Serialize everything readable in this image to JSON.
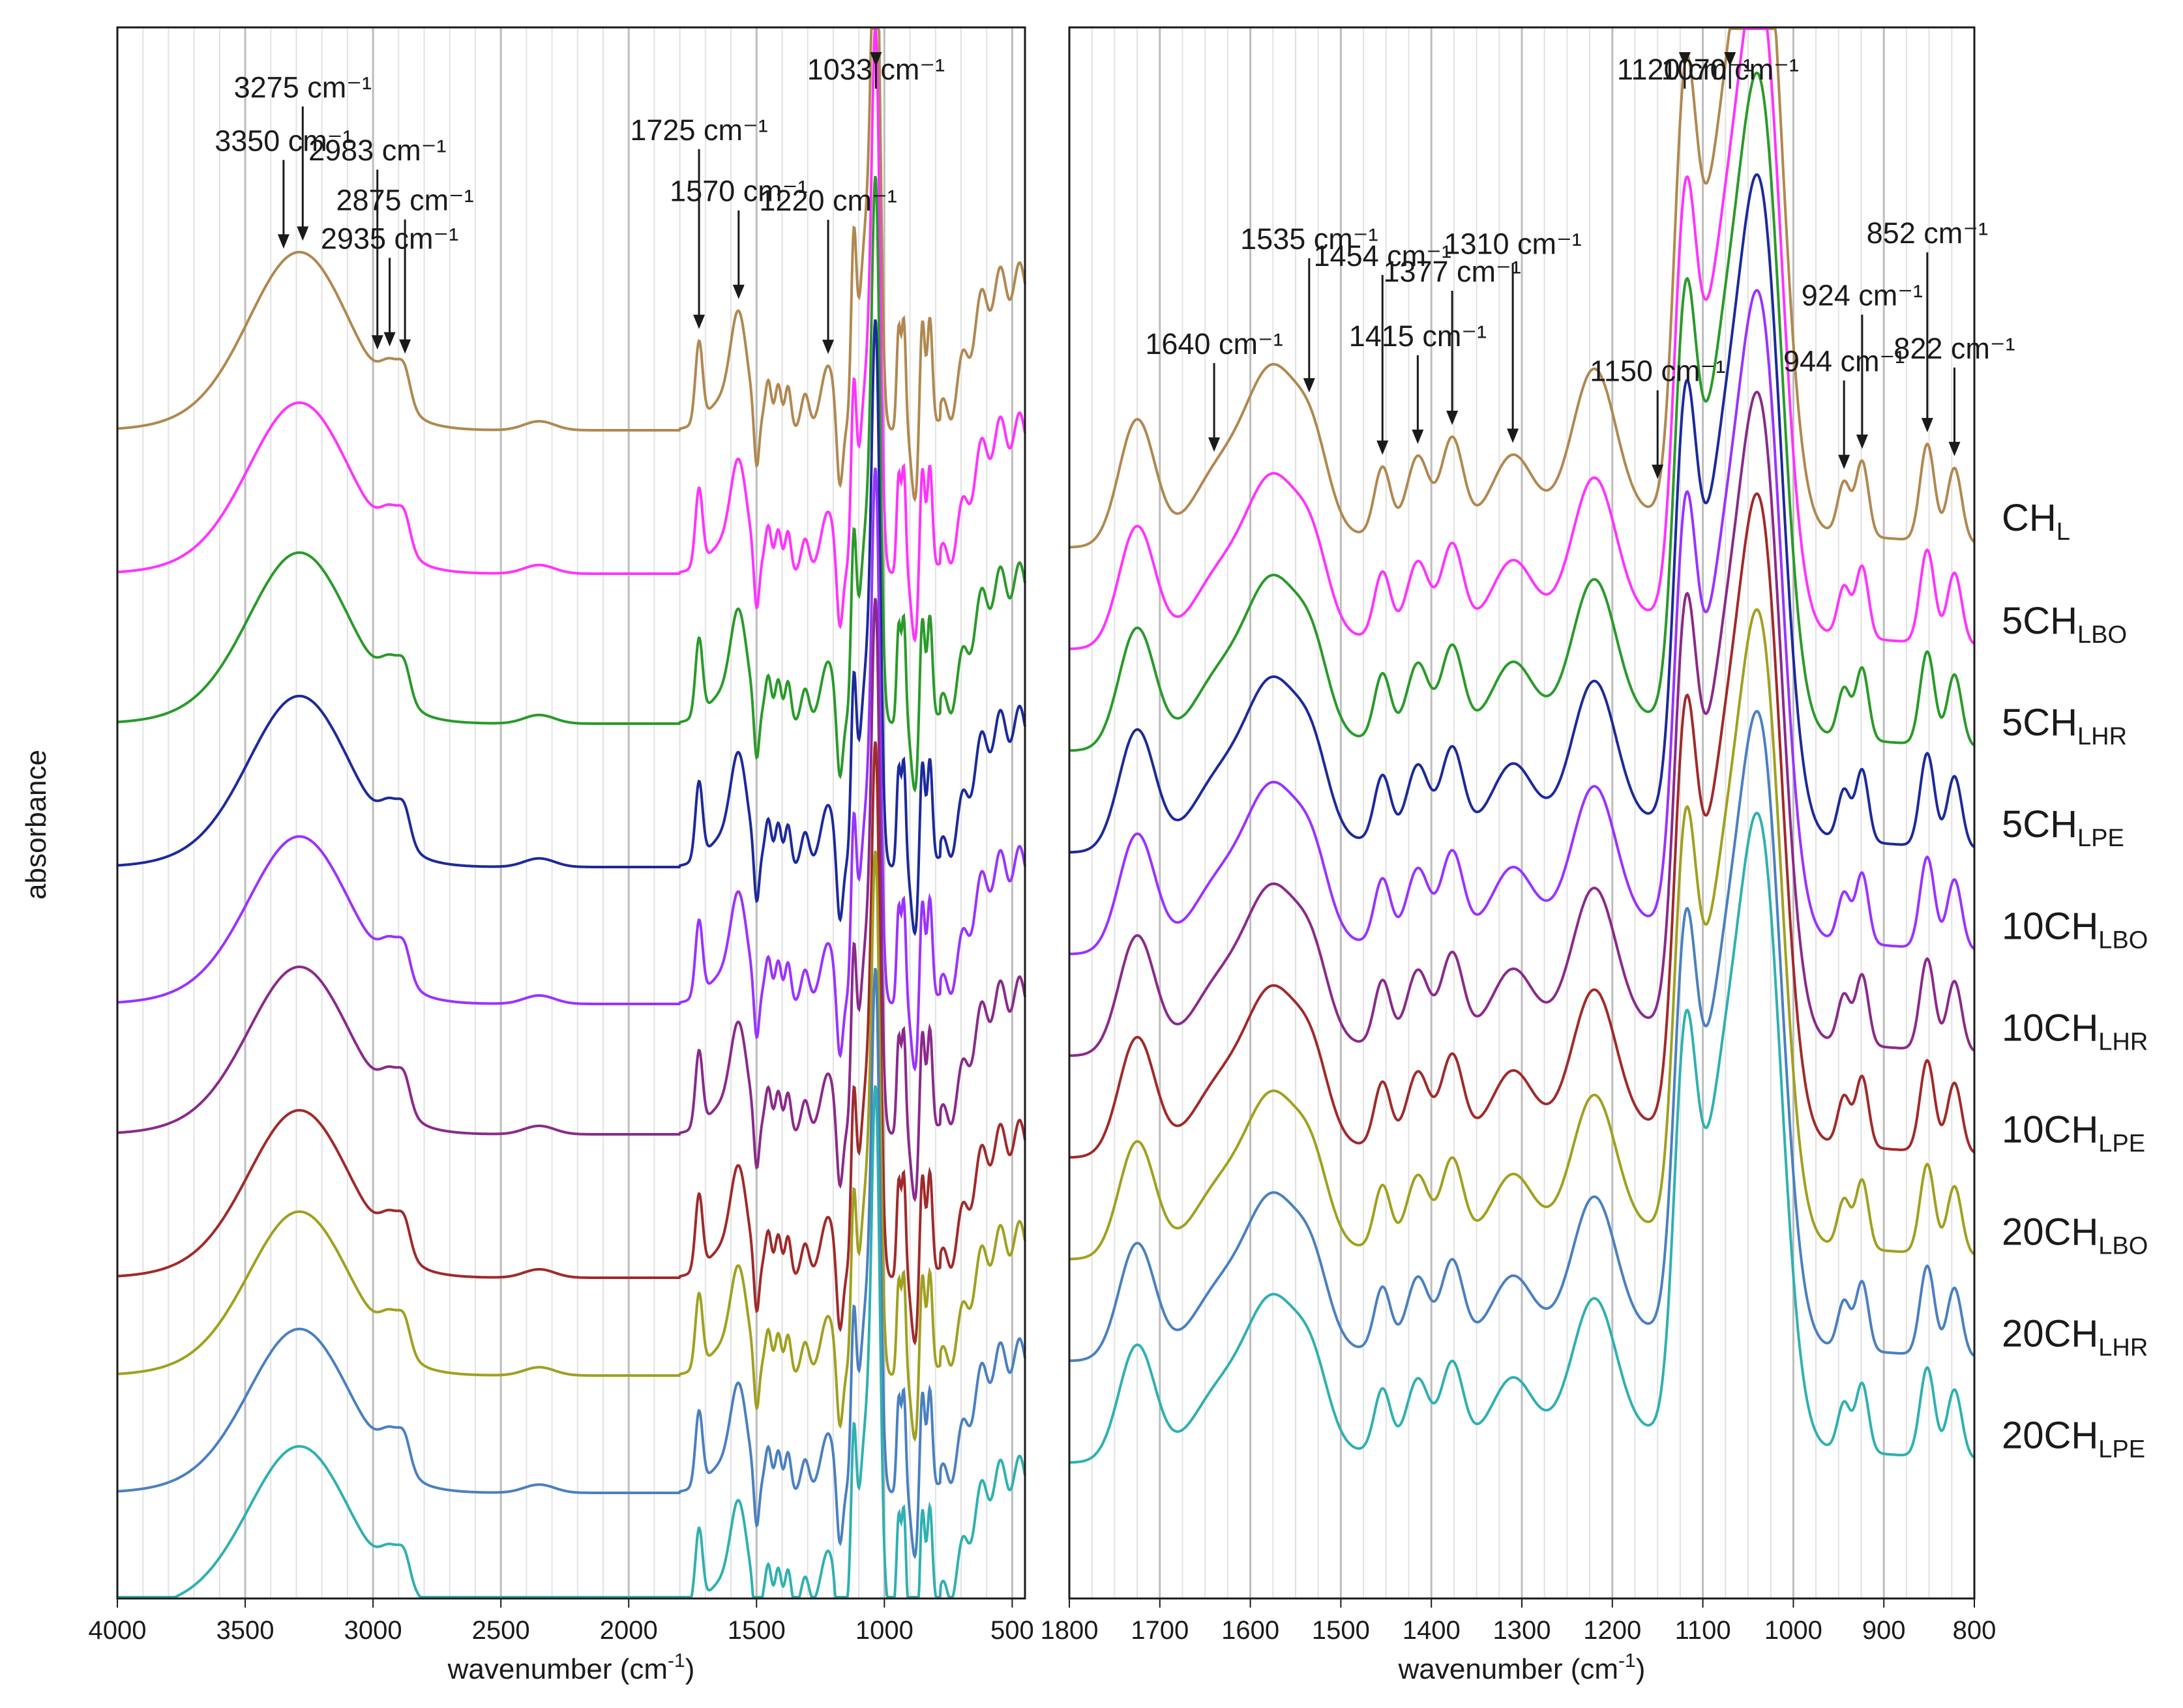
{
  "figure": {
    "y_axis_label": "absorbance",
    "x_axis_label_base": "wavenumber (cm",
    "x_axis_label_exp": "-1",
    "x_axis_label_close": ")"
  },
  "chart_data": [
    {
      "type": "line",
      "panel": "left",
      "title": "",
      "xlabel": "wavenumber (cm-1)",
      "ylabel": "absorbance",
      "xlim": [
        4000,
        450
      ],
      "x_reversed": true,
      "xticks": [
        4000,
        3500,
        3000,
        2500,
        2000,
        1500,
        1000,
        500
      ],
      "minor_gridlines_every": 100,
      "major_gridlines_every": 500,
      "series": [
        {
          "name": "CHL",
          "color": "#b08850",
          "baseline_abs": 1.68,
          "shape_scale": 1.0
        },
        {
          "name": "5CHLBO",
          "color": "#ff33ff",
          "baseline_abs": 1.46,
          "shape_scale": 0.96
        },
        {
          "name": "5CHLHR",
          "color": "#2a9a2a",
          "baseline_abs": 1.23,
          "shape_scale": 0.96
        },
        {
          "name": "5CHLPE",
          "color": "#1c2a9a",
          "baseline_abs": 1.01,
          "shape_scale": 0.96
        },
        {
          "name": "10CHLBO",
          "color": "#9933ff",
          "baseline_abs": 0.8,
          "shape_scale": 0.94
        },
        {
          "name": "10CHLHR",
          "color": "#8a2a8a",
          "baseline_abs": 0.6,
          "shape_scale": 0.94
        },
        {
          "name": "10CHLPE",
          "color": "#a02a2a",
          "baseline_abs": 0.38,
          "shape_scale": 0.94
        },
        {
          "name": "20CHLBO",
          "color": "#a0a020",
          "baseline_abs": 0.23,
          "shape_scale": 0.92
        },
        {
          "name": "20CHLHR",
          "color": "#4a80c0",
          "baseline_abs": 0.05,
          "shape_scale": 0.92
        },
        {
          "name": "20CHLPE",
          "color": "#30b0b0",
          "baseline_abs": -0.13,
          "shape_scale": 0.92
        }
      ],
      "annotations": [
        {
          "label": "3350 cm⁻¹",
          "wavenumber": 3350
        },
        {
          "label": "3275 cm⁻¹",
          "wavenumber": 3275
        },
        {
          "label": "2983 cm⁻¹",
          "wavenumber": 2983
        },
        {
          "label": "2935 cm⁻¹",
          "wavenumber": 2935
        },
        {
          "label": "2875 cm⁻¹",
          "wavenumber": 2875
        },
        {
          "label": "1725 cm⁻¹",
          "wavenumber": 1725
        },
        {
          "label": "1570 cm⁻¹",
          "wavenumber": 1570
        },
        {
          "label": "1220 cm⁻¹",
          "wavenumber": 1220
        },
        {
          "label": "1033 cm⁻¹",
          "wavenumber": 1033
        }
      ]
    },
    {
      "type": "line",
      "panel": "right",
      "title": "",
      "xlabel": "wavenumber (cm-1)",
      "ylabel": "absorbance",
      "xlim": [
        1800,
        800
      ],
      "x_reversed": true,
      "xticks": [
        1800,
        1700,
        1600,
        1500,
        1400,
        1300,
        1200,
        1100,
        1000,
        900,
        800
      ],
      "minor_gridlines_every": 25,
      "major_gridlines_every": 100,
      "series": [
        {
          "name": "CHL",
          "label_main": "CH",
          "label_sub": "L",
          "color": "#b08850",
          "baseline_abs": 1.5,
          "shape_scale": 1.0
        },
        {
          "name": "5CHLBO",
          "label_main": "5CH",
          "label_sub": "LBO",
          "color": "#ff33ff",
          "baseline_abs": 1.35,
          "shape_scale": 0.96
        },
        {
          "name": "5CHLHR",
          "label_main": "5CH",
          "label_sub": "LHR",
          "color": "#2a9a2a",
          "baseline_abs": 1.2,
          "shape_scale": 0.96
        },
        {
          "name": "5CHLPE",
          "label_main": "5CH",
          "label_sub": "LPE",
          "color": "#1c2a9a",
          "baseline_abs": 1.05,
          "shape_scale": 0.96
        },
        {
          "name": "10CHLBO",
          "label_main": "10CH",
          "label_sub": "LBO",
          "color": "#9933ff",
          "baseline_abs": 0.9,
          "shape_scale": 0.94
        },
        {
          "name": "10CHLHR",
          "label_main": "10CH",
          "label_sub": "LHR",
          "color": "#8a2a8a",
          "baseline_abs": 0.75,
          "shape_scale": 0.94
        },
        {
          "name": "10CHLPE",
          "label_main": "10CH",
          "label_sub": "LPE",
          "color": "#a02a2a",
          "baseline_abs": 0.6,
          "shape_scale": 0.94
        },
        {
          "name": "20CHLBO",
          "label_main": "20CH",
          "label_sub": "LBO",
          "color": "#a0a020",
          "baseline_abs": 0.45,
          "shape_scale": 0.92
        },
        {
          "name": "20CHLHR",
          "label_main": "20CH",
          "label_sub": "LHR",
          "color": "#4a80c0",
          "baseline_abs": 0.3,
          "shape_scale": 0.92
        },
        {
          "name": "20CHLPE",
          "label_main": "20CH",
          "label_sub": "LPE",
          "color": "#30b0b0",
          "baseline_abs": 0.15,
          "shape_scale": 0.92
        }
      ],
      "annotations": [
        {
          "label": "1640 cm⁻¹",
          "wavenumber": 1640
        },
        {
          "label": "1535 cm⁻¹",
          "wavenumber": 1535
        },
        {
          "label": "1454 cm⁻¹",
          "wavenumber": 1454
        },
        {
          "label": "1415 cm⁻¹",
          "wavenumber": 1415
        },
        {
          "label": "1377 cm⁻¹",
          "wavenumber": 1377
        },
        {
          "label": "1310 cm⁻¹",
          "wavenumber": 1310
        },
        {
          "label": "1150 cm⁻¹",
          "wavenumber": 1150
        },
        {
          "label": "1120 cm⁻¹",
          "wavenumber": 1120
        },
        {
          "label": "1070 cm⁻¹",
          "wavenumber": 1070
        },
        {
          "label": "944 cm⁻¹",
          "wavenumber": 944
        },
        {
          "label": "924 cm⁻¹",
          "wavenumber": 924
        },
        {
          "label": "852 cm⁻¹",
          "wavenumber": 852
        },
        {
          "label": "822 cm⁻¹",
          "wavenumber": 822
        }
      ]
    }
  ]
}
